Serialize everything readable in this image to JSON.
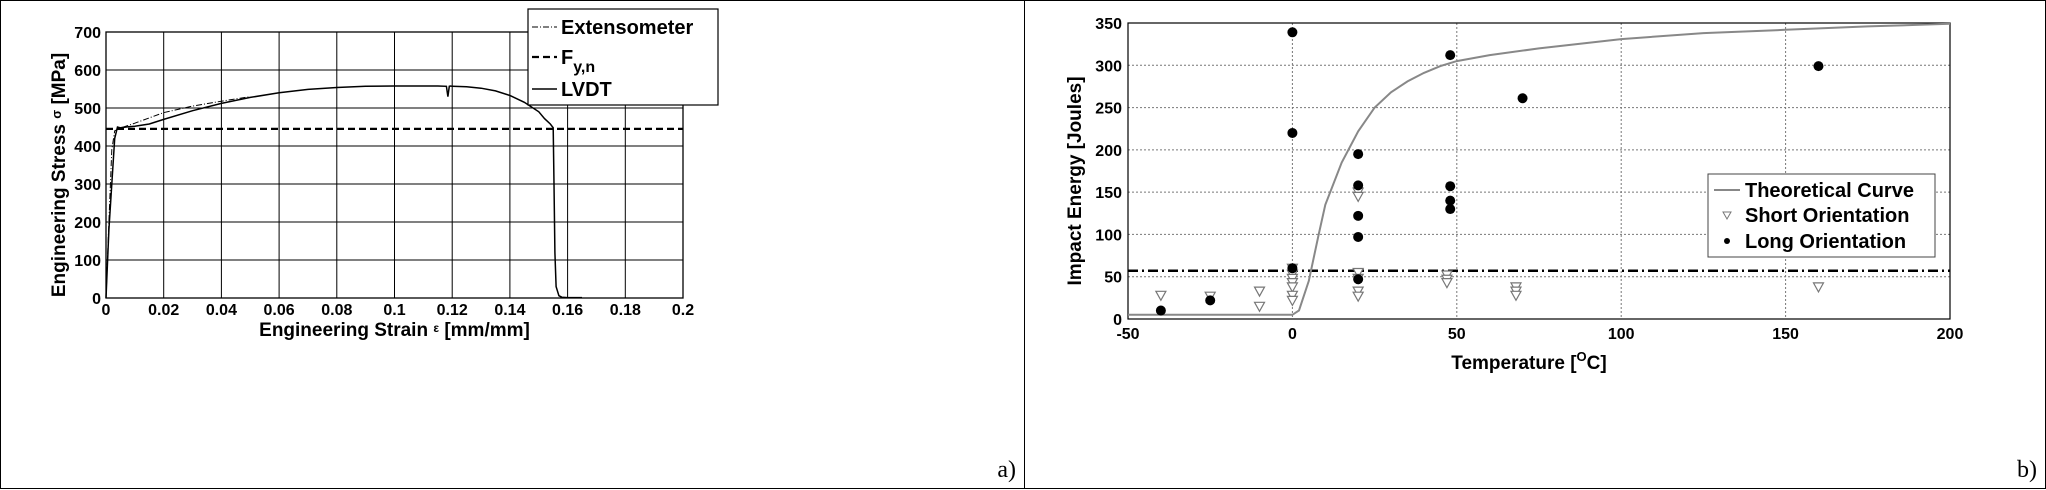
{
  "panel_a": {
    "letter": "a)"
  },
  "panel_b": {
    "letter": "b)"
  },
  "chart_data": [
    {
      "type": "line",
      "title": "",
      "xlabel": "Engineering Strain",
      "xlabel_symbol": "ε",
      "xlabel_unit": "[mm/mm]",
      "ylabel": "Engineering Stress",
      "ylabel_symbol": "σ",
      "ylabel_unit": "[MPa]",
      "xlim": [
        0,
        0.2
      ],
      "ylim": [
        0,
        700
      ],
      "xticks": [
        "0",
        "0.02",
        "0.04",
        "0.06",
        "0.08",
        "0.1",
        "0.12",
        "0.14",
        "0.16",
        "0.18",
        "0.2"
      ],
      "yticks": [
        "0",
        "100",
        "200",
        "300",
        "400",
        "500",
        "600",
        "700"
      ],
      "grid": true,
      "legend_position": "top-right",
      "series": [
        {
          "name": "Extensometer",
          "style": "dash-dot",
          "x": [
            0,
            0.001,
            0.002,
            0.003,
            0.005,
            0.01,
            0.02,
            0.03,
            0.04,
            0.05
          ],
          "y": [
            0,
            200,
            390,
            440,
            447,
            460,
            488,
            505,
            518,
            530
          ]
        },
        {
          "name": "F",
          "name_subscript": "y,n",
          "style": "dashed",
          "x": [
            0,
            0.2
          ],
          "y": [
            445,
            445
          ]
        },
        {
          "name": "LVDT",
          "style": "solid",
          "x": [
            0,
            0.001,
            0.002,
            0.003,
            0.004,
            0.005,
            0.007,
            0.01,
            0.015,
            0.02,
            0.03,
            0.04,
            0.05,
            0.06,
            0.07,
            0.08,
            0.09,
            0.1,
            0.11,
            0.115,
            0.118,
            0.1185,
            0.119,
            0.1195,
            0.12,
            0.125,
            0.13,
            0.135,
            0.14,
            0.145,
            0.15,
            0.152,
            0.154,
            0.155,
            0.1553,
            0.1556,
            0.156,
            0.157,
            0.158,
            0.16,
            0.165
          ],
          "y": [
            0,
            180,
            300,
            420,
            450,
            448,
            450,
            452,
            458,
            470,
            493,
            512,
            528,
            540,
            549,
            554,
            557,
            558,
            558,
            558,
            557,
            530,
            557,
            558,
            557,
            556,
            552,
            545,
            533,
            515,
            490,
            472,
            458,
            448,
            300,
            120,
            30,
            6,
            2,
            1,
            1
          ]
        }
      ]
    },
    {
      "type": "scatter",
      "title": "",
      "xlabel": "Temperature",
      "xlabel_unit_open": "[",
      "xlabel_unit_sup": "O",
      "xlabel_unit_close": "C]",
      "ylabel": "Impact Energy [Joules]",
      "xlim": [
        -50,
        200
      ],
      "ylim": [
        0,
        350
      ],
      "xticks": [
        "-50",
        "0",
        "50",
        "100",
        "150",
        "200"
      ],
      "yticks": [
        "0",
        "50",
        "100",
        "150",
        "200",
        "250",
        "300",
        "350"
      ],
      "grid": true,
      "legend_position": "center-right",
      "reference_line_y": 57,
      "series": [
        {
          "name": "Theoretical Curve",
          "style": "line",
          "color": "#888888",
          "x": [
            -50,
            0,
            2,
            5,
            8,
            10,
            15,
            20,
            25,
            30,
            35,
            40,
            45,
            50,
            60,
            75,
            100,
            125,
            150,
            175,
            200
          ],
          "y": [
            5,
            5,
            10,
            45,
            100,
            135,
            185,
            222,
            250,
            268,
            281,
            291,
            299,
            305,
            312,
            320,
            331,
            338,
            342,
            346,
            349
          ]
        },
        {
          "name": "Short Orientation",
          "style": "open-triangle",
          "points": [
            [
              -40,
              28
            ],
            [
              -25,
              27
            ],
            [
              -10,
              33
            ],
            [
              -10,
              15
            ],
            [
              0,
              60
            ],
            [
              0,
              53
            ],
            [
              0,
              48
            ],
            [
              0,
              43
            ],
            [
              0,
              38
            ],
            [
              0,
              28
            ],
            [
              0,
              22
            ],
            [
              20,
              150
            ],
            [
              20,
              145
            ],
            [
              20,
              55
            ],
            [
              20,
              48
            ],
            [
              20,
              33
            ],
            [
              20,
              27
            ],
            [
              47,
              52
            ],
            [
              47,
              47
            ],
            [
              47,
              43
            ],
            [
              68,
              38
            ],
            [
              68,
              33
            ],
            [
              68,
              28
            ],
            [
              160,
              38
            ]
          ]
        },
        {
          "name": "Long Orientation",
          "style": "filled-circle",
          "points": [
            [
              -40,
              10
            ],
            [
              -25,
              22
            ],
            [
              0,
              339
            ],
            [
              0,
              220
            ],
            [
              0,
              60
            ],
            [
              20,
              195
            ],
            [
              20,
              158
            ],
            [
              20,
              122
            ],
            [
              20,
              97
            ],
            [
              20,
              47
            ],
            [
              48,
              312
            ],
            [
              48,
              157
            ],
            [
              48,
              140
            ],
            [
              48,
              130
            ],
            [
              70,
              261
            ],
            [
              160,
              299
            ]
          ]
        }
      ]
    }
  ]
}
